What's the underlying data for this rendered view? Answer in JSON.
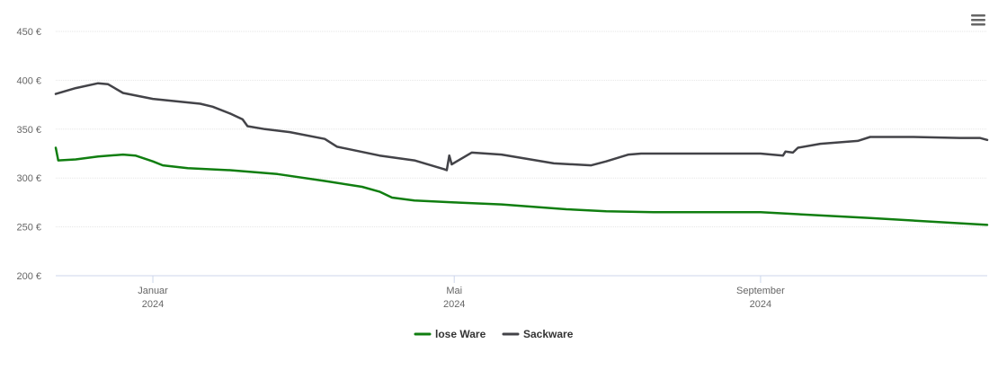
{
  "chart_data": {
    "type": "line",
    "y_ticks": [
      "450 €",
      "400 €",
      "350 €",
      "300 €",
      "250 €",
      "200 €"
    ],
    "y_tick_values": [
      450,
      400,
      350,
      300,
      250,
      200
    ],
    "ylim": [
      200,
      450
    ],
    "xlim": [
      "2023-11-23",
      "2024-12-01"
    ],
    "x_ticks": [
      {
        "date": "2024-01-01",
        "month": "Januar",
        "year": "2024"
      },
      {
        "date": "2024-05-01",
        "month": "Mai",
        "year": "2024"
      },
      {
        "date": "2024-09-01",
        "month": "September",
        "year": "2024"
      }
    ],
    "grid": true,
    "legend_position": "bottom-center",
    "series": [
      {
        "name": "lose Ware",
        "color": "#107e10",
        "points": [
          [
            "2023-11-23",
            331
          ],
          [
            "2023-11-24",
            318
          ],
          [
            "2023-12-01",
            319
          ],
          [
            "2023-12-10",
            322
          ],
          [
            "2023-12-20",
            324
          ],
          [
            "2023-12-25",
            323
          ],
          [
            "2024-01-01",
            317
          ],
          [
            "2024-01-05",
            313
          ],
          [
            "2024-01-15",
            310
          ],
          [
            "2024-02-01",
            308
          ],
          [
            "2024-02-20",
            304
          ],
          [
            "2024-03-10",
            297
          ],
          [
            "2024-03-25",
            291
          ],
          [
            "2024-04-01",
            286
          ],
          [
            "2024-04-06",
            280
          ],
          [
            "2024-04-15",
            277
          ],
          [
            "2024-05-01",
            275
          ],
          [
            "2024-05-20",
            273
          ],
          [
            "2024-06-15",
            268
          ],
          [
            "2024-07-01",
            266
          ],
          [
            "2024-07-20",
            265
          ],
          [
            "2024-09-01",
            265
          ],
          [
            "2024-10-15",
            259
          ],
          [
            "2024-12-01",
            252
          ]
        ]
      },
      {
        "name": "Sackware",
        "color": "#434348",
        "points": [
          [
            "2023-11-23",
            386
          ],
          [
            "2023-12-01",
            392
          ],
          [
            "2023-12-10",
            397
          ],
          [
            "2023-12-14",
            396
          ],
          [
            "2023-12-20",
            387
          ],
          [
            "2024-01-01",
            381
          ],
          [
            "2024-01-20",
            376
          ],
          [
            "2024-01-25",
            373
          ],
          [
            "2024-02-01",
            366
          ],
          [
            "2024-02-06",
            360
          ],
          [
            "2024-02-08",
            353
          ],
          [
            "2024-02-15",
            350
          ],
          [
            "2024-02-25",
            347
          ],
          [
            "2024-03-10",
            340
          ],
          [
            "2024-03-15",
            332
          ],
          [
            "2024-04-01",
            323
          ],
          [
            "2024-04-15",
            318
          ],
          [
            "2024-04-30",
            314
          ],
          [
            "2024-04-27",
            309
          ],
          [
            "2024-04-28",
            308
          ],
          [
            "2024-04-29",
            323
          ],
          [
            "2024-05-08",
            326
          ],
          [
            "2024-05-20",
            324
          ],
          [
            "2024-06-10",
            315
          ],
          [
            "2024-06-25",
            313
          ],
          [
            "2024-07-01",
            317
          ],
          [
            "2024-07-10",
            324
          ],
          [
            "2024-07-15",
            325
          ],
          [
            "2024-09-01",
            325
          ],
          [
            "2024-09-10",
            323
          ],
          [
            "2024-09-11",
            327
          ],
          [
            "2024-09-14",
            326
          ],
          [
            "2024-09-16",
            331
          ],
          [
            "2024-09-25",
            335
          ],
          [
            "2024-10-10",
            338
          ],
          [
            "2024-10-15",
            342
          ],
          [
            "2024-11-01",
            342
          ],
          [
            "2024-11-20",
            341
          ],
          [
            "2024-11-28",
            341
          ],
          [
            "2024-12-01",
            339
          ]
        ]
      }
    ]
  }
}
